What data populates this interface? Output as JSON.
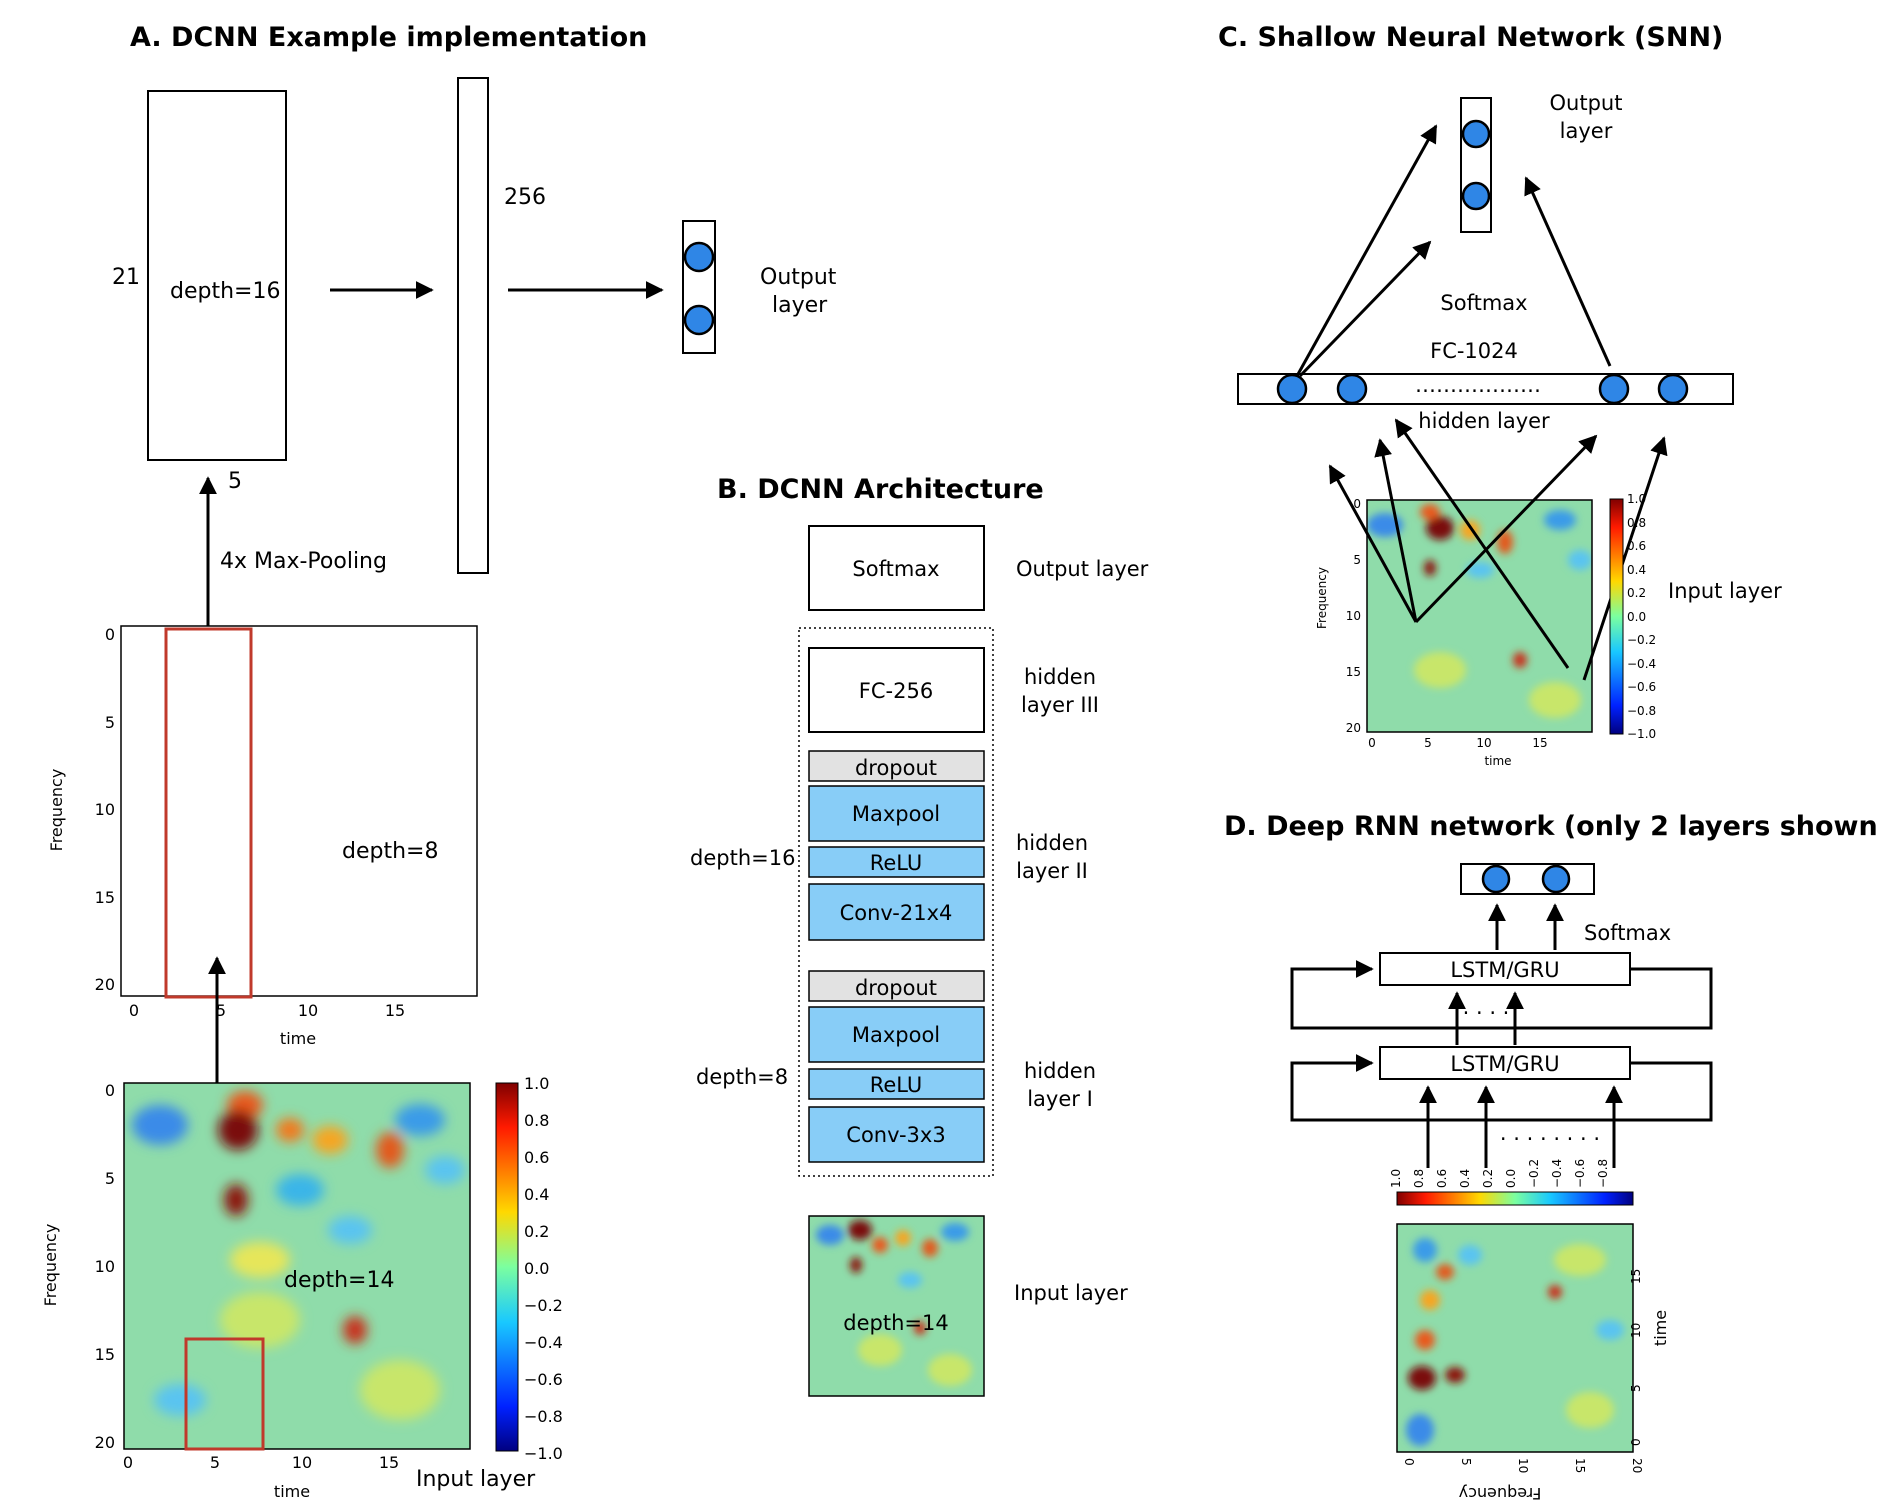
{
  "panel_a": {
    "title": "A. DCNN Example implementation",
    "block1": {
      "height_label": "21",
      "width_label": "5",
      "depth_label": "depth=16"
    },
    "dense_label": "256",
    "output_label_1": "Output",
    "output_label_2": "layer",
    "pool_label": "4x Max-Pooling",
    "map1": {
      "depth_label": "depth=8",
      "ylabel": "Frequency",
      "xlabel": "time",
      "yticks": [
        "0",
        "5",
        "10",
        "15",
        "20"
      ],
      "xticks": [
        "0",
        "5",
        "10",
        "15"
      ]
    },
    "map2": {
      "depth_label": "depth=14",
      "ylabel": "Frequency",
      "xlabel": "time",
      "yticks": [
        "0",
        "5",
        "10",
        "15",
        "20"
      ],
      "xticks": [
        "0",
        "5",
        "10",
        "15"
      ],
      "colorbar_ticks": [
        "1.0",
        "0.8",
        "0.6",
        "0.4",
        "0.2",
        "0.0",
        "−0.2",
        "−0.4",
        "−0.6",
        "−0.8",
        "−1.0"
      ]
    },
    "input_label": "Input layer"
  },
  "panel_b": {
    "title": "B. DCNN Architecture",
    "softmax": "Softmax",
    "output_label": "Output layer",
    "fc": "FC-256",
    "hidden3_1": "hidden",
    "hidden3_2": "layer III",
    "block2": {
      "dropout": "dropout",
      "maxpool": "Maxpool",
      "relu": "ReLU",
      "conv": "Conv-21x4",
      "depth": "depth=16"
    },
    "hidden2_1": "hidden",
    "hidden2_2": "layer II",
    "block1": {
      "dropout": "dropout",
      "maxpool": "Maxpool",
      "relu": "ReLU",
      "conv": "Conv-3x3",
      "depth": "depth=8"
    },
    "hidden1_1": "hidden",
    "hidden1_2": "layer I",
    "input_depth": "depth=14",
    "input_label": "Input layer"
  },
  "panel_c": {
    "title": "C. Shallow Neural Network (SNN)",
    "output_label_1": "Output",
    "output_label_2": "layer",
    "softmax": "Softmax",
    "fc": "FC-1024",
    "dots": "………………",
    "hidden_label": "hidden layer",
    "input_label": "Input layer",
    "map": {
      "ylabel": "Frequency",
      "xlabel": "time",
      "yticks": [
        "0",
        "5",
        "10",
        "15",
        "20"
      ],
      "xticks": [
        "0",
        "5",
        "10",
        "15"
      ],
      "colorbar_ticks": [
        "1.0",
        "0.8",
        "0.6",
        "0.4",
        "0.2",
        "0.0",
        "−0.2",
        "−0.4",
        "−0.6",
        "−0.8",
        "−1.0"
      ]
    }
  },
  "panel_d": {
    "title": "D. Deep RNN network (only 2 layers shown)",
    "softmax": "Softmax",
    "cell_top": "LSTM/GRU",
    "cell_bottom": "LSTM/GRU",
    "dots_mid": "· · · ·",
    "dots_in": "· · · · · · · ·",
    "colorbar_ticks": [
      "1.0",
      "0.8",
      "0.6",
      "0.4",
      "0.2",
      "0.0",
      "−0.2",
      "−0.4",
      "−0.6",
      "−0.8"
    ],
    "map": {
      "ylabel": "time",
      "xlabel": "Frequency",
      "yticks": [
        "0",
        "5",
        "10",
        "15"
      ],
      "xticks": [
        "0",
        "5",
        "10",
        "15",
        "20"
      ]
    }
  },
  "colors": {
    "node": "#2f86e6",
    "layer_block": "#88cdf7",
    "dropout_block": "#e2e2e2",
    "receptive_field": "#c0392b",
    "heatmap_base": "#8fdcaa"
  }
}
